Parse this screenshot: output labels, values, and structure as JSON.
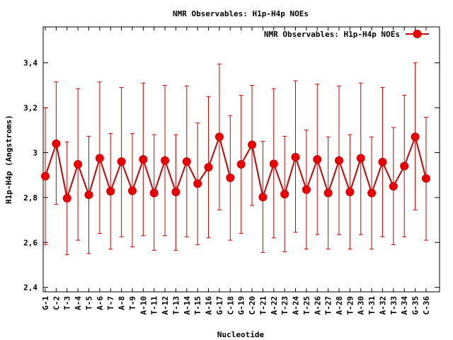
{
  "chart_data": {
    "type": "line",
    "title": "NMR Observables: H1p-H4p NOEs",
    "xlabel": "Nucleotide",
    "ylabel": "H1p-H4p (Angstroms)",
    "ylim": [
      2.38,
      3.56
    ],
    "yticks": [
      2.4,
      2.6,
      2.8,
      3,
      3.2,
      3.4
    ],
    "ytick_labels": [
      "2,4",
      "2,6",
      "2,8",
      "3",
      "3,2",
      "3,4"
    ],
    "grid": false,
    "legend_position": "top-right",
    "line_color": "#cc0000",
    "categories": [
      "G-1",
      "C-2",
      "T-3",
      "A-4",
      "T-5",
      "A-6",
      "T-7",
      "A-8",
      "T-9",
      "A-10",
      "T-11",
      "A-12",
      "T-13",
      "A-14",
      "T-15",
      "A-16",
      "G-17",
      "C-18",
      "G-19",
      "C-20",
      "T-21",
      "A-22",
      "T-23",
      "A-24",
      "T-25",
      "A-26",
      "T-27",
      "A-28",
      "T-29",
      "A-30",
      "T-31",
      "A-32",
      "T-33",
      "A-34",
      "G-35",
      "C-36"
    ],
    "series": [
      {
        "name": "NMR Observables: H1p-H4p NOEs",
        "segments": [
          [
            0,
            17
          ],
          [
            18,
            35
          ]
        ],
        "values": [
          2.895,
          3.04,
          2.797,
          2.948,
          2.812,
          2.975,
          2.828,
          2.96,
          2.83,
          2.97,
          2.82,
          2.965,
          2.825,
          2.96,
          2.862,
          2.935,
          3.07,
          2.888,
          2.948,
          3.035,
          2.802,
          2.95,
          2.815,
          2.98,
          2.835,
          2.97,
          2.82,
          2.965,
          2.825,
          2.975,
          2.82,
          2.958,
          2.85,
          2.94,
          3.07,
          2.885
        ],
        "err_low": [
          2.59,
          2.77,
          2.545,
          2.61,
          2.55,
          2.64,
          2.57,
          2.625,
          2.58,
          2.63,
          2.565,
          2.63,
          2.565,
          2.625,
          2.59,
          2.62,
          2.745,
          2.61,
          2.64,
          2.765,
          2.555,
          2.62,
          2.558,
          2.645,
          2.57,
          2.635,
          2.57,
          2.635,
          2.57,
          2.635,
          2.57,
          2.625,
          2.59,
          2.625,
          2.745,
          2.61
        ],
        "err_high": [
          3.2,
          3.315,
          3.048,
          3.285,
          3.073,
          3.315,
          3.085,
          3.29,
          3.085,
          3.31,
          3.08,
          3.3,
          3.08,
          3.297,
          3.132,
          3.25,
          3.395,
          3.165,
          3.255,
          3.3,
          3.05,
          3.285,
          3.073,
          3.32,
          3.1,
          3.305,
          3.07,
          3.297,
          3.08,
          3.31,
          3.07,
          3.29,
          3.112,
          3.256,
          3.4,
          3.158
        ]
      }
    ]
  }
}
